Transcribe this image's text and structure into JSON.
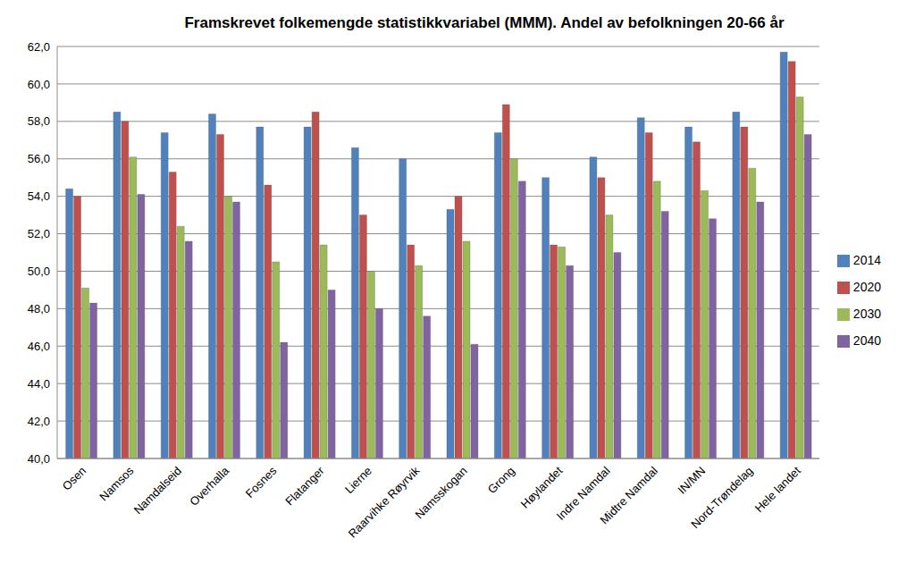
{
  "chart_data": {
    "type": "bar",
    "title": "Framskrevet folkemengde statistikkvariabel (MMM). Andel av befolkningen 20-66 år",
    "categories": [
      "Osen",
      "Namsos",
      "Namdalseid",
      "Overhalla",
      "Fosnes",
      "Flatanger",
      "Lierne",
      "Raarvihke Røyrvik",
      "Namsskogan",
      "Grong",
      "Høylandet",
      "Indre Namdal",
      "Midtre Namdal",
      "IN/MN",
      "Nord-Trøndelag",
      "Hele landet"
    ],
    "series": [
      {
        "name": "2014",
        "color": "#4f81bd",
        "values": [
          54.4,
          58.5,
          57.4,
          58.4,
          57.7,
          57.7,
          56.6,
          56.0,
          53.3,
          57.4,
          55.0,
          56.1,
          58.2,
          57.7,
          58.5,
          61.7
        ]
      },
      {
        "name": "2020",
        "color": "#c0504d",
        "values": [
          54.0,
          58.0,
          55.3,
          57.3,
          54.6,
          58.5,
          53.0,
          51.4,
          54.0,
          58.9,
          51.4,
          55.0,
          57.4,
          56.9,
          57.7,
          61.2
        ]
      },
      {
        "name": "2030",
        "color": "#9bbb59",
        "values": [
          49.1,
          56.1,
          52.4,
          54.0,
          50.5,
          51.4,
          50.0,
          50.3,
          51.6,
          56.0,
          51.3,
          53.0,
          54.8,
          54.3,
          55.5,
          59.3
        ]
      },
      {
        "name": "2040",
        "color": "#8064a2",
        "values": [
          48.3,
          54.1,
          51.6,
          53.7,
          46.2,
          49.0,
          48.0,
          47.6,
          46.1,
          54.8,
          50.3,
          51.0,
          53.2,
          52.8,
          53.7,
          57.3
        ]
      }
    ],
    "ylim": [
      40,
      62
    ],
    "yticks": [
      {
        "value": 40,
        "label": "40,0"
      },
      {
        "value": 42,
        "label": "42,0"
      },
      {
        "value": 44,
        "label": "44,0"
      },
      {
        "value": 46,
        "label": "46,0"
      },
      {
        "value": 48,
        "label": "48,0"
      },
      {
        "value": 50,
        "label": "50,0"
      },
      {
        "value": 52,
        "label": "52,0"
      },
      {
        "value": 54,
        "label": "54,0"
      },
      {
        "value": 56,
        "label": "56,0"
      },
      {
        "value": 58,
        "label": "58,0"
      },
      {
        "value": 60,
        "label": "60,0"
      },
      {
        "value": 62,
        "label": "62,0"
      }
    ],
    "grid": true,
    "legend": "right"
  }
}
